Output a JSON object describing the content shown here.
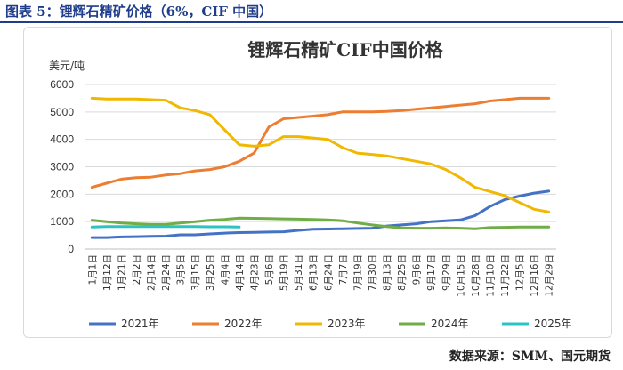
{
  "caption": "图表 5：锂辉石精矿价格（6%，CIF 中国）",
  "source": "数据来源：SMM、国元期货",
  "colors": {
    "caption": "#1f3d8c",
    "grid": "#d9d9d9"
  },
  "chart_data": {
    "type": "line",
    "title": "锂辉石精矿CIF中国价格",
    "ylabel": "美元/吨",
    "xlabel": "",
    "ylim": [
      0,
      6000
    ],
    "yticks": [
      0,
      1000,
      2000,
      3000,
      4000,
      5000,
      6000
    ],
    "grid": "horizontal",
    "legend": "bottom",
    "categories": [
      "1月1日",
      "1月12日",
      "1月21日",
      "2月2日",
      "2月14日",
      "2月24日",
      "3月5日",
      "3月15日",
      "3月25日",
      "4月4日",
      "4月14日",
      "4月23日",
      "5月6日",
      "5月19日",
      "5月31日",
      "6月13日",
      "6月24日",
      "7月7日",
      "7月19日",
      "7月30日",
      "8月13日",
      "8月25日",
      "9月6日",
      "9月17日",
      "9月29日",
      "10月15日",
      "10月28日",
      "11月10日",
      "11月22日",
      "12月5日",
      "12月16日",
      "12月29日"
    ],
    "series": [
      {
        "name": "2021年",
        "color": "#4472c4",
        "x": [
          0,
          1,
          2,
          3,
          4,
          5,
          6,
          7,
          8,
          9,
          10,
          11,
          12,
          13,
          14,
          15,
          16,
          17,
          18,
          19,
          20,
          21,
          22,
          23,
          24,
          25,
          26,
          27,
          28,
          29,
          30,
          31
        ],
        "values": [
          420,
          420,
          440,
          450,
          460,
          470,
          520,
          520,
          550,
          580,
          600,
          610,
          620,
          630,
          680,
          720,
          730,
          740,
          750,
          760,
          840,
          880,
          920,
          1000,
          1030,
          1060,
          1220,
          1550,
          1800,
          1930,
          2040,
          2110
        ]
      },
      {
        "name": "2022年",
        "color": "#ed7d31",
        "x": [
          0,
          1,
          2,
          3,
          4,
          5,
          6,
          7,
          8,
          9,
          10,
          11,
          12,
          13,
          14,
          15,
          16,
          17,
          18,
          19,
          20,
          21,
          22,
          23,
          24,
          25,
          26,
          27,
          28,
          29,
          30,
          31
        ],
        "values": [
          2250,
          2400,
          2550,
          2600,
          2620,
          2700,
          2750,
          2850,
          2900,
          3000,
          3200,
          3500,
          4450,
          4750,
          4800,
          4850,
          4900,
          5000,
          5000,
          5000,
          5020,
          5050,
          5100,
          5150,
          5200,
          5250,
          5300,
          5400,
          5450,
          5500,
          5500,
          5500
        ]
      },
      {
        "name": "2023年",
        "color": "#f0b800",
        "x": [
          0,
          1,
          2,
          3,
          4,
          5,
          6,
          7,
          8,
          9,
          10,
          11,
          12,
          13,
          14,
          15,
          16,
          17,
          18,
          19,
          20,
          21,
          22,
          23,
          24,
          25,
          26,
          27,
          28,
          29,
          30,
          31
        ],
        "values": [
          5500,
          5470,
          5470,
          5470,
          5450,
          5430,
          5150,
          5050,
          4900,
          4350,
          3800,
          3750,
          3800,
          4100,
          4100,
          4050,
          4000,
          3700,
          3500,
          3450,
          3400,
          3300,
          3200,
          3100,
          2900,
          2600,
          2250,
          2100,
          1950,
          1700,
          1450,
          1350
        ]
      },
      {
        "name": "2024年",
        "color": "#70ad47",
        "x": [
          0,
          1,
          2,
          3,
          4,
          5,
          6,
          7,
          8,
          9,
          10,
          11,
          12,
          13,
          14,
          15,
          16,
          17,
          18,
          19,
          20,
          21,
          22,
          23,
          24,
          25,
          26,
          27,
          28,
          29,
          30,
          31
        ],
        "values": [
          1050,
          1000,
          950,
          920,
          900,
          900,
          950,
          1000,
          1050,
          1080,
          1130,
          1120,
          1110,
          1100,
          1090,
          1080,
          1060,
          1030,
          950,
          880,
          820,
          770,
          760,
          760,
          770,
          760,
          740,
          780,
          790,
          800,
          800,
          800
        ]
      },
      {
        "name": "2025年",
        "color": "#2ec3c3",
        "x": [
          0,
          1,
          2,
          3,
          4,
          5,
          6,
          7,
          8,
          9,
          10
        ],
        "values": [
          800,
          820,
          820,
          820,
          820,
          820,
          820,
          820,
          810,
          810,
          800
        ]
      }
    ]
  }
}
